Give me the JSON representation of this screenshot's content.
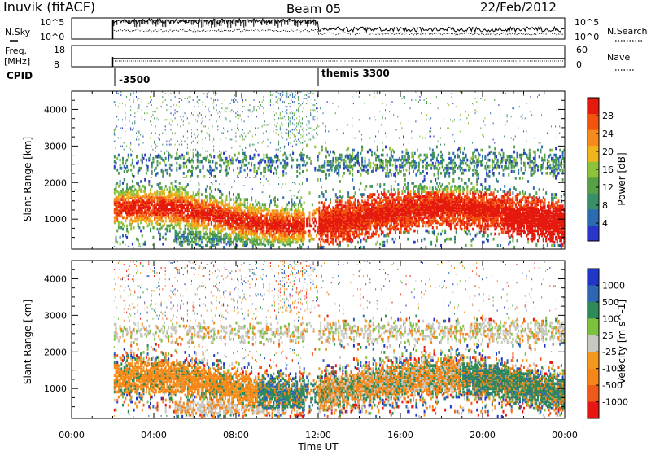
{
  "header": {
    "station": "Inuvik (fitACF)",
    "beam": "Beam 05",
    "date": "22/Feb/2012"
  },
  "noise_panel": {
    "left_label": "N.Sky",
    "right_label": "N.Search",
    "left_ticks": [
      "10^5",
      "10^0"
    ],
    "right_ticks": [
      "10^5",
      "10^0"
    ]
  },
  "freq_panel": {
    "left_label_line1": "Freq.",
    "left_label_line2": "[MHz]",
    "right_label": "Nave",
    "left_ticks": [
      "18",
      "8"
    ],
    "right_ticks": [
      "60",
      "0"
    ]
  },
  "cpid": {
    "label": "CPID",
    "segments": [
      {
        "start_hour": 2.0,
        "text": "-3500"
      },
      {
        "start_hour": 12.0,
        "text": "themis 3300"
      }
    ]
  },
  "colors": {
    "power_scale": [
      "#2a36c8",
      "#2d6bb0",
      "#3a8f68",
      "#58a048",
      "#8ec23c",
      "#f0b41c",
      "#f68a1c",
      "#f2540e",
      "#e51a0e"
    ],
    "velocity_scale": [
      "#2036c8",
      "#2e66b4",
      "#2f8a5a",
      "#7cc23c",
      "#c8c8c0",
      "#f39a1e",
      "#f5871a",
      "#ef5a1a",
      "#e81612"
    ]
  },
  "chart_data": [
    {
      "type": "heatmap",
      "panel": "power",
      "xlabel": "",
      "ylabel": "Slant Range [km]",
      "xlim": [
        0,
        24
      ],
      "ylim": [
        180,
        4500
      ],
      "ytick_labels": [
        "1000",
        "2000",
        "3000",
        "4000"
      ],
      "colorbar": {
        "label": "Power [dB]",
        "tick_labels": [
          "4",
          "8",
          "12",
          "16",
          "20",
          "24",
          "28"
        ],
        "range": [
          0,
          32
        ]
      }
    },
    {
      "type": "heatmap",
      "panel": "velocity",
      "xlabel": "Time UT",
      "ylabel": "Slant Range [km]",
      "xlim": [
        0,
        24
      ],
      "ylim": [
        180,
        4500
      ],
      "ytick_labels": [
        "1000",
        "2000",
        "3000",
        "4000"
      ],
      "xtick_labels": [
        "00:00",
        "04:00",
        "08:00",
        "12:00",
        "16:00",
        "20:00",
        "00:00"
      ],
      "colorbar": {
        "label": "Velocity [m s^-1]",
        "tick_labels": [
          "1000",
          "500",
          "100",
          "25",
          "-25",
          "-100",
          "-500",
          "-1000"
        ]
      }
    }
  ]
}
